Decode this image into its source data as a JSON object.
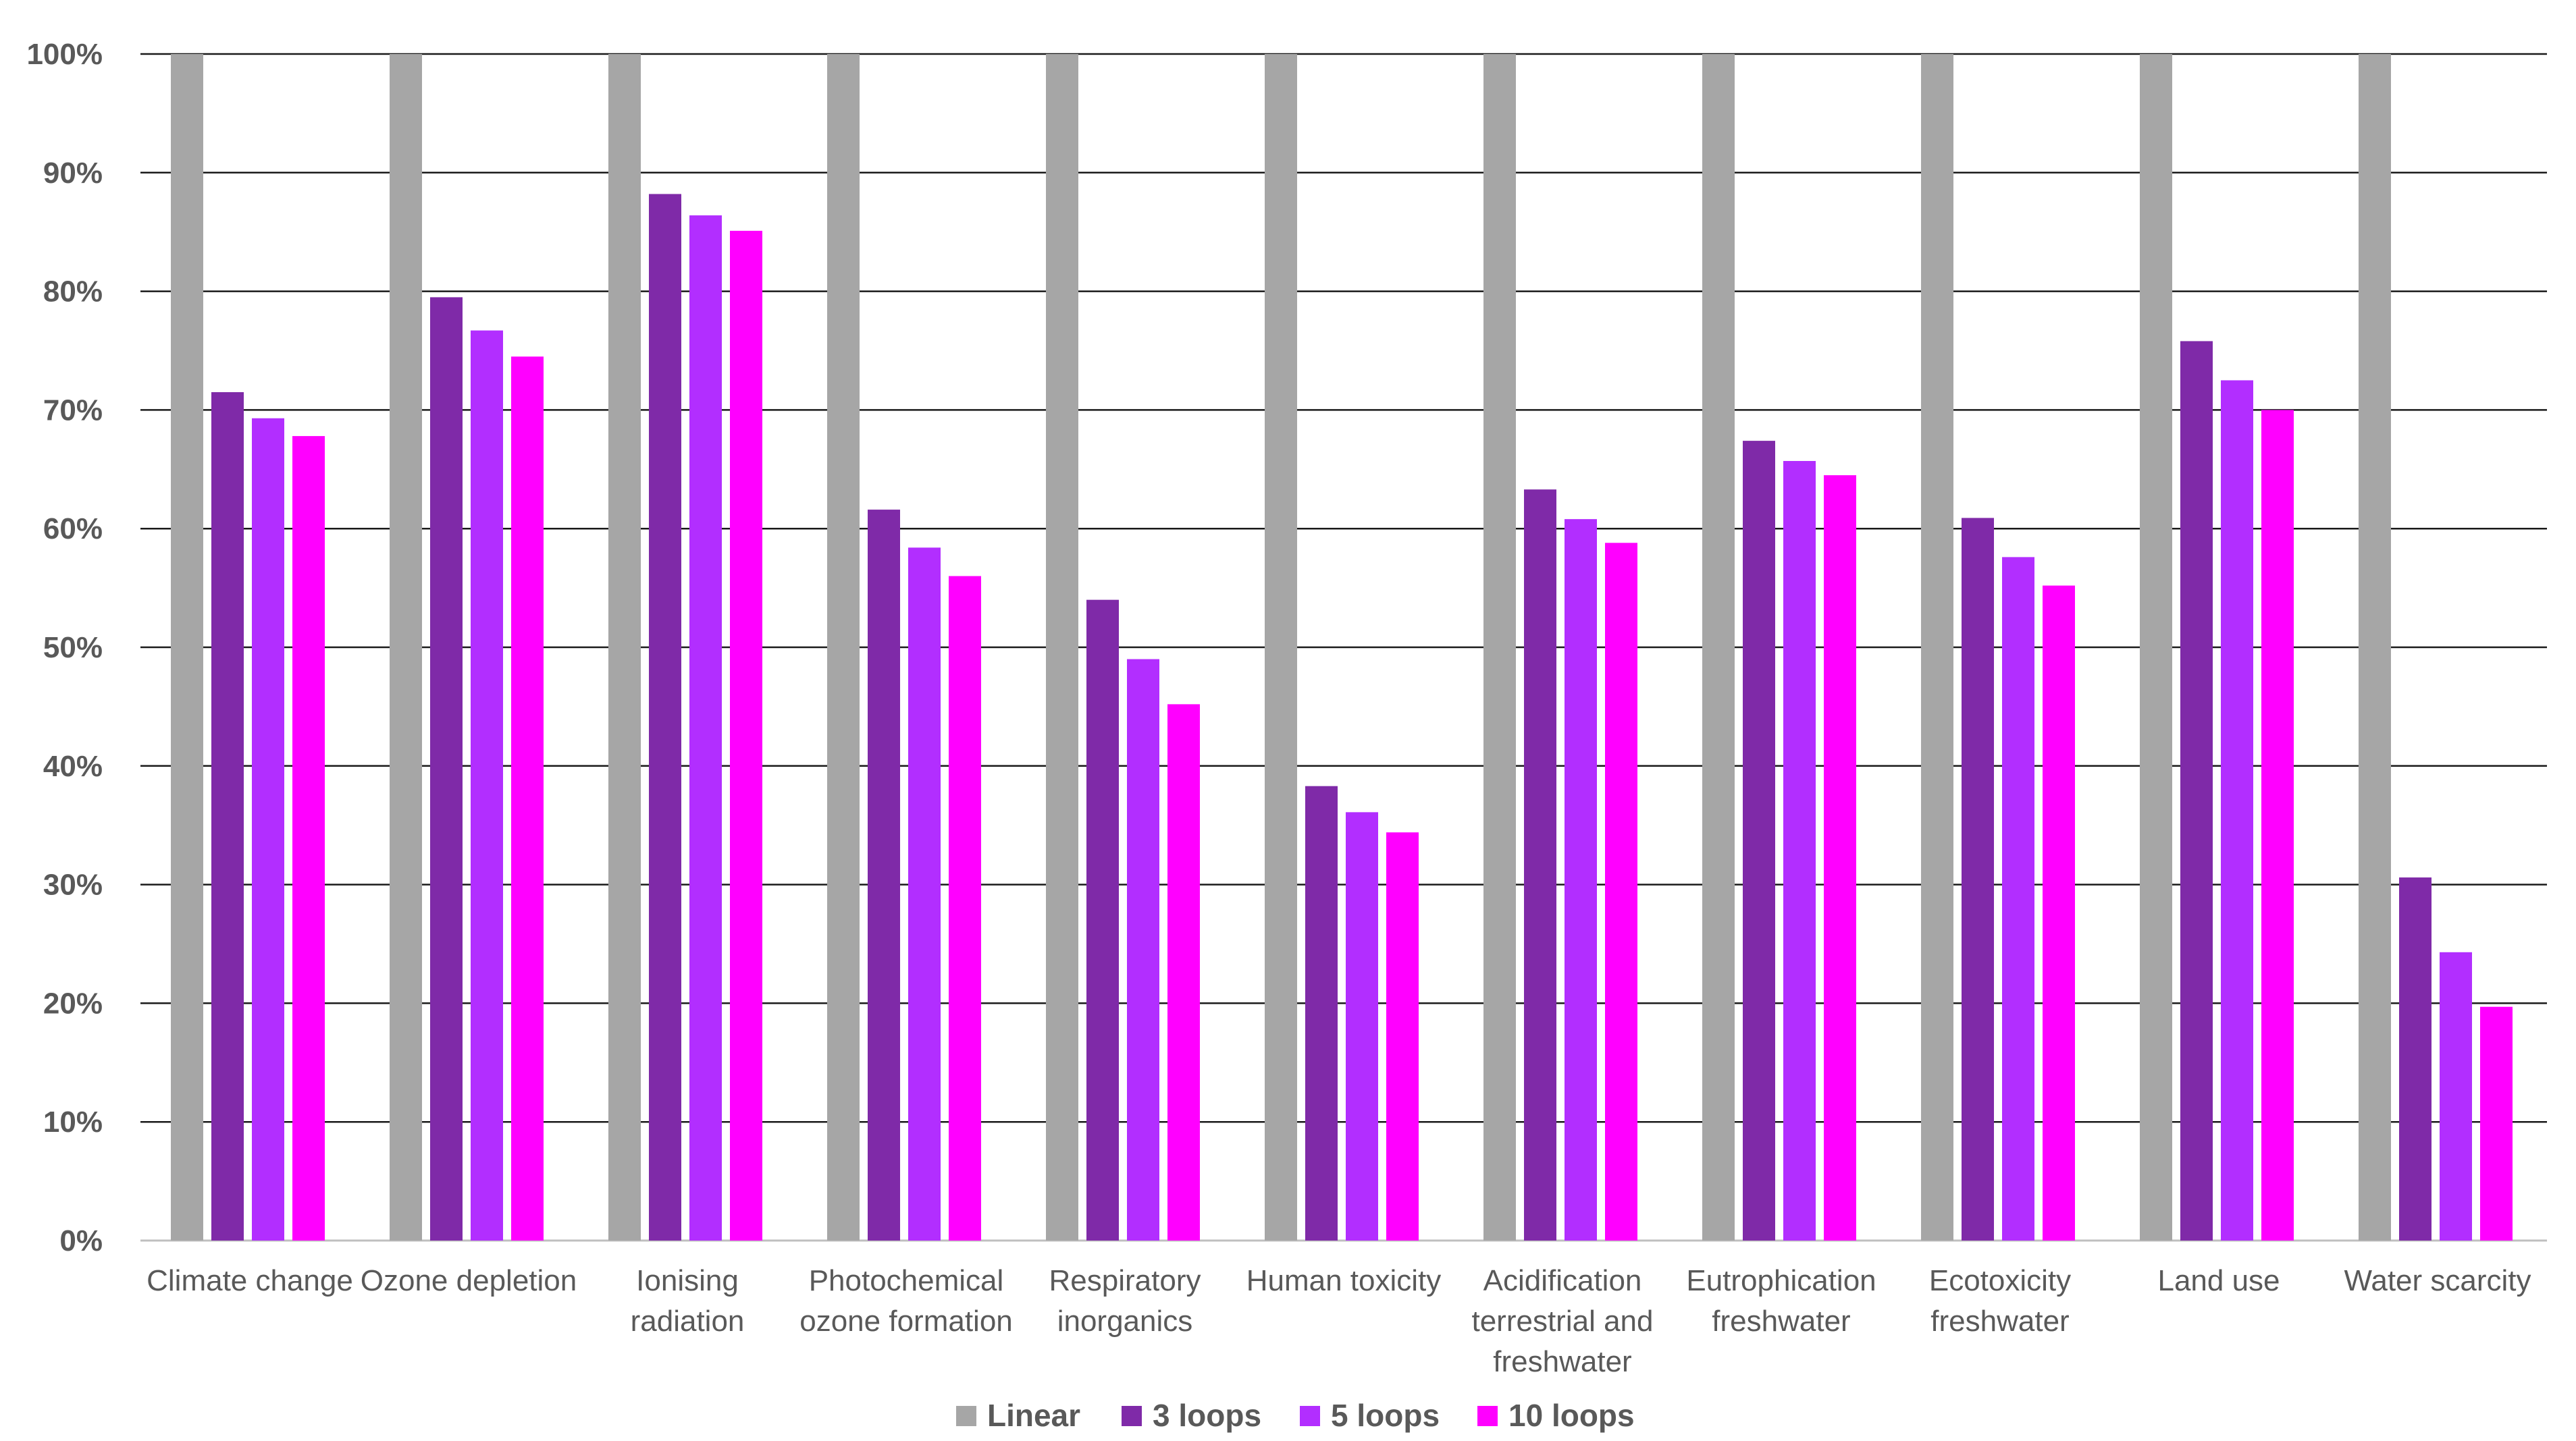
{
  "chart_data": {
    "type": "bar",
    "title": "",
    "xlabel": "",
    "ylabel": "",
    "ylim": [
      0,
      100
    ],
    "yticks": [
      "0%",
      "10%",
      "20%",
      "30%",
      "40%",
      "50%",
      "60%",
      "70%",
      "80%",
      "90%",
      "100%"
    ],
    "grid": true,
    "legend_position": "bottom",
    "categories": [
      [
        "Climate change"
      ],
      [
        "Ozone depletion"
      ],
      [
        "Ionising",
        "radiation"
      ],
      [
        "Photochemical",
        "ozone formation"
      ],
      [
        "Respiratory",
        "inorganics"
      ],
      [
        "Human toxicity"
      ],
      [
        "Acidification",
        "terrestrial and",
        "freshwater"
      ],
      [
        "Eutrophication",
        "freshwater"
      ],
      [
        "Ecotoxicity",
        "freshwater"
      ],
      [
        "Land use"
      ],
      [
        "Water scarcity"
      ]
    ],
    "series": [
      {
        "name": "Linear",
        "color": "#a6a6a6",
        "values": [
          100,
          100,
          100,
          100,
          100,
          100,
          100,
          100,
          100,
          100,
          100
        ]
      },
      {
        "name": "3 loops",
        "color": "#7f2aa8",
        "values": [
          71.5,
          79.5,
          88.2,
          61.6,
          54,
          38.3,
          63.3,
          67.4,
          60.9,
          75.8,
          30.6
        ]
      },
      {
        "name": "5 loops",
        "color": "#b22eff",
        "values": [
          69.3,
          76.7,
          86.4,
          58.4,
          49,
          36.1,
          60.8,
          65.7,
          57.6,
          72.5,
          24.3
        ]
      },
      {
        "name": "10 loops",
        "color": "#ff00ff",
        "values": [
          67.8,
          74.5,
          85.1,
          56,
          45.2,
          34.4,
          58.8,
          64.5,
          55.2,
          70,
          19.7
        ]
      }
    ]
  }
}
